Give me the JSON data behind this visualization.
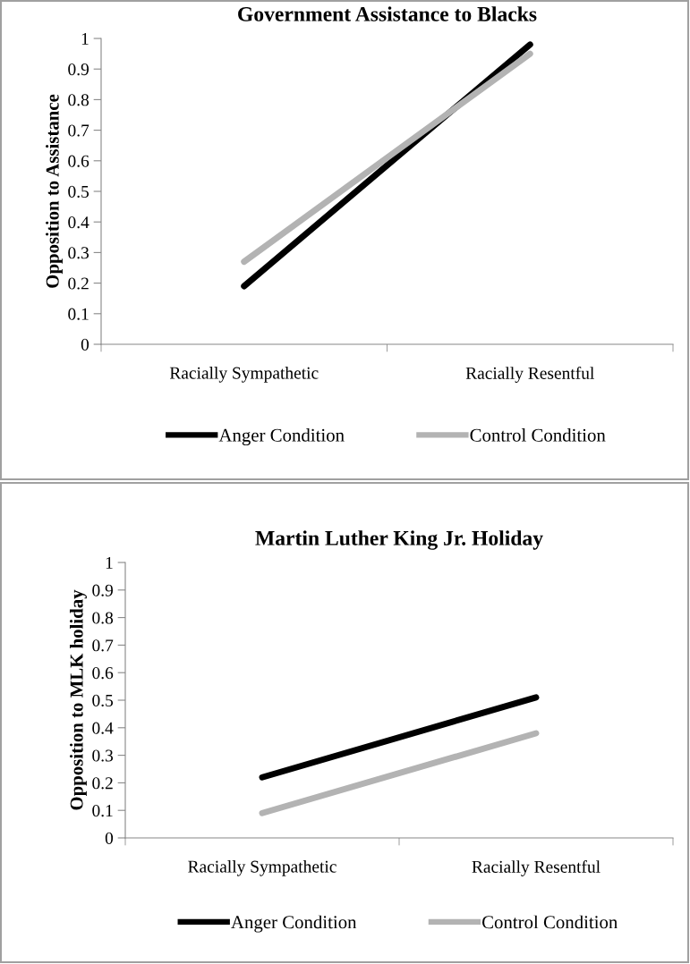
{
  "chart_data": [
    {
      "type": "line",
      "title": "Government Assistance to Blacks",
      "ylabel": "Opposition to Assistance",
      "categories": [
        "Racially Sympathetic",
        "Racially Resentful"
      ],
      "series": [
        {
          "name": "Anger Condition",
          "color": "#000000",
          "values": [
            0.19,
            0.98
          ]
        },
        {
          "name": "Control Condition",
          "color": "#b3b3b3",
          "values": [
            0.27,
            0.95
          ]
        }
      ],
      "ylim": [
        0,
        1
      ],
      "yticks": [
        0,
        0.1,
        0.2,
        0.3,
        0.4,
        0.5,
        0.6,
        0.7,
        0.8,
        0.9,
        1
      ],
      "grid": false,
      "legend": "bottom",
      "marker": "none",
      "line_style": "solid"
    },
    {
      "type": "line",
      "title": "Martin Luther King Jr. Holiday",
      "ylabel": "Opposition to MLK holiday",
      "categories": [
        "Racially Sympathetic",
        "Racially Resentful"
      ],
      "series": [
        {
          "name": "Anger Condition",
          "color": "#000000",
          "values": [
            0.22,
            0.51
          ]
        },
        {
          "name": "Control Condition",
          "color": "#b3b3b3",
          "values": [
            0.09,
            0.38
          ]
        }
      ],
      "ylim": [
        0,
        1
      ],
      "yticks": [
        0,
        0.1,
        0.2,
        0.3,
        0.4,
        0.5,
        0.6,
        0.7,
        0.8,
        0.9,
        1
      ],
      "grid": false,
      "legend": "bottom",
      "marker": "none",
      "line_style": "solid"
    }
  ]
}
